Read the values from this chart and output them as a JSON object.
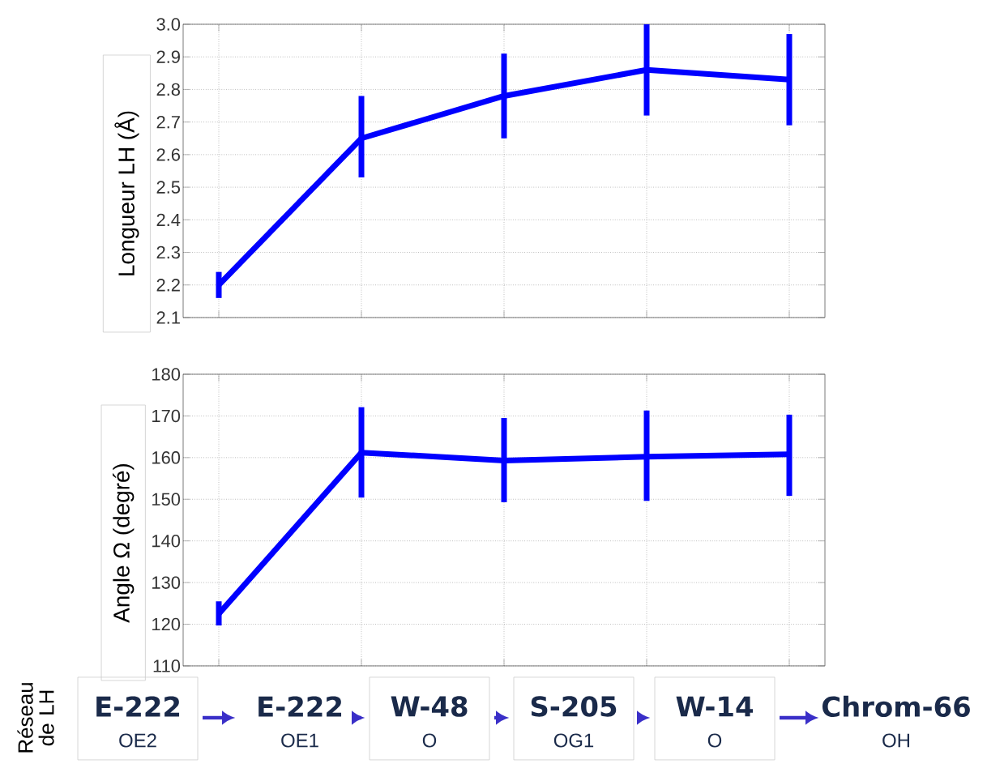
{
  "chart_data": [
    {
      "type": "line",
      "ylabel": "Longueur LH (Å)",
      "categories": [
        null,
        null,
        null,
        null,
        null
      ],
      "series": [
        {
          "color": "#0000ff",
          "values": [
            2.2,
            2.65,
            2.78,
            2.86,
            2.83
          ],
          "errors": [
            [
              2.16,
              2.24
            ],
            [
              2.53,
              2.78
            ],
            [
              2.65,
              2.91
            ],
            [
              2.72,
              3.0
            ],
            [
              2.69,
              2.97
            ]
          ]
        }
      ],
      "ylim": [
        2.1,
        3.0
      ],
      "yticks": [
        2.1,
        2.2,
        2.3,
        2.4,
        2.5,
        2.6,
        2.7,
        2.8,
        2.9,
        {
          "value": 3,
          "label": "3.0"
        }
      ],
      "grid": true,
      "tick_labels": "y"
    },
    {
      "type": "line",
      "ylabel": "Angle Ω (degré)",
      "categories": [
        null,
        null,
        null,
        null,
        null
      ],
      "series": [
        {
          "color": "#0000ff",
          "values": [
            122.5,
            161.2,
            159.3,
            160.2,
            160.8
          ],
          "errors": [
            [
              119.7,
              125.5
            ],
            [
              150.4,
              172.1
            ],
            [
              149.3,
              169.5
            ],
            [
              149.6,
              171.3
            ],
            [
              150.8,
              170.3
            ]
          ]
        }
      ],
      "ylim": [
        110,
        180
      ],
      "yticks": [
        110,
        120,
        130,
        140,
        150,
        160,
        170,
        180
      ],
      "grid": true,
      "tick_labels": "y",
      "annotations": [
        "Réseau de LH",
        "E-222",
        "OE2",
        "E-222",
        "OE1",
        "W-48",
        "O",
        "S-205",
        "OG1",
        "W-14",
        "O",
        "Chrom-66",
        "OH"
      ]
    }
  ]
}
